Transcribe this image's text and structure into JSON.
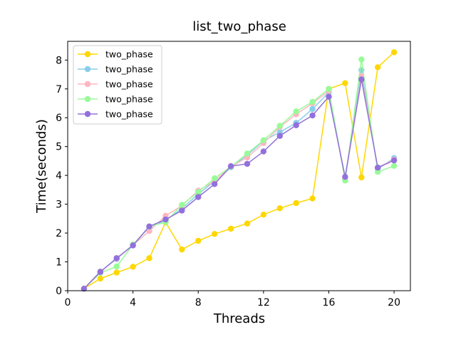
{
  "chart_data": {
    "type": "line",
    "title": "list_two_phase",
    "xlabel": "Threads",
    "ylabel": "Time(seconds)",
    "xlim": [
      0,
      21
    ],
    "ylim": [
      0,
      8.65
    ],
    "xticks": [
      0,
      4,
      8,
      12,
      16,
      20
    ],
    "yticks": [
      0,
      1,
      2,
      3,
      4,
      5,
      6,
      7,
      8
    ],
    "grid": false,
    "legend_position": "top-left",
    "x": [
      1,
      2,
      3,
      4,
      5,
      6,
      7,
      8,
      9,
      10,
      11,
      12,
      13,
      14,
      15,
      16,
      17,
      18,
      19,
      20
    ],
    "series": [
      {
        "name": "two_phase",
        "color": "#FFD700",
        "values": [
          0.07,
          0.42,
          0.63,
          0.83,
          1.13,
          2.37,
          1.43,
          1.73,
          1.97,
          2.15,
          2.33,
          2.64,
          2.86,
          3.04,
          3.2,
          7.0,
          7.2,
          3.93,
          7.75,
          8.27
        ]
      },
      {
        "name": "two_phase",
        "color": "#87CEEB",
        "values": [
          0.07,
          0.67,
          1.1,
          1.6,
          2.2,
          2.44,
          2.85,
          3.35,
          3.8,
          4.28,
          4.7,
          5.2,
          5.5,
          5.82,
          6.3,
          6.88,
          3.85,
          7.65,
          4.22,
          4.6
        ]
      },
      {
        "name": "two_phase",
        "color": "#FFB6C1",
        "values": [
          0.07,
          0.66,
          1.12,
          1.58,
          2.07,
          2.6,
          2.95,
          3.47,
          3.8,
          4.3,
          4.62,
          5.12,
          5.68,
          6.12,
          6.5,
          6.93,
          3.87,
          7.45,
          4.27,
          4.55
        ]
      },
      {
        "name": "two_phase",
        "color": "#98FB98",
        "values": [
          0.07,
          0.62,
          0.84,
          1.6,
          2.22,
          2.38,
          2.98,
          3.42,
          3.9,
          4.3,
          4.76,
          5.22,
          5.72,
          6.22,
          6.55,
          7.0,
          3.82,
          8.02,
          4.12,
          4.33
        ]
      },
      {
        "name": "two_phase",
        "color": "#9370DB",
        "values": [
          0.07,
          0.65,
          1.13,
          1.57,
          2.23,
          2.47,
          2.78,
          3.25,
          3.7,
          4.32,
          4.4,
          4.83,
          5.37,
          5.74,
          6.08,
          6.73,
          3.95,
          7.33,
          4.27,
          4.52
        ]
      }
    ]
  }
}
